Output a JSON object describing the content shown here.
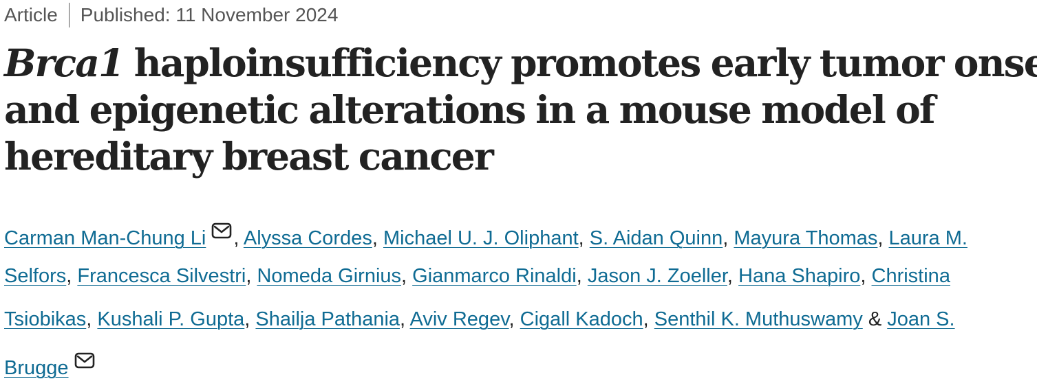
{
  "meta": {
    "type": "Article",
    "published": "Published: 11 November 2024"
  },
  "title": {
    "gene": "Brca1",
    "line1_rest": " haploinsufficiency promotes early tumor onset",
    "line2": "and epigenetic alterations in a mouse model of",
    "line3": "hereditary breast cancer"
  },
  "authors": {
    "a1": "Carman Man-Chung Li",
    "a2": "Alyssa Cordes",
    "a3": "Michael U. J. Oliphant",
    "a4": "S. Aidan Quinn",
    "a5": "Mayura Thomas",
    "a6_part1": "Laura M.",
    "a6_part2": "Selfors",
    "a7": "Francesca Silvestri",
    "a8": "Nomeda Girnius",
    "a9": "Gianmarco Rinaldi",
    "a10": "Jason J. Zoeller",
    "a11": "Hana Shapiro",
    "a12_part1": "Christina",
    "a12_part2": "Tsiobikas",
    "a13": "Kushali P. Gupta",
    "a14": "Shailja Pathania",
    "a15": "Aviv Regev",
    "a16": "Cigall Kadoch",
    "a17": "Senthil K. Muthuswamy",
    "a18_part1": "Joan S.",
    "a18_part2": "Brugge",
    "separator": ", ",
    "conjunction": " & ",
    "mail_icon": "envelope-icon"
  },
  "colors": {
    "link": "#0f6b93",
    "text": "#222222",
    "meta": "#555555"
  }
}
